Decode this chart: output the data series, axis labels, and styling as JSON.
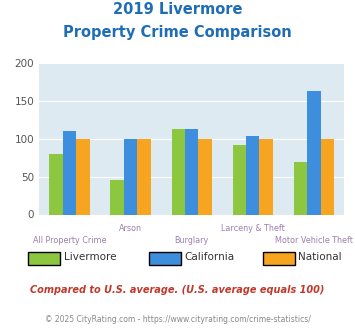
{
  "title_line1": "2019 Livermore",
  "title_line2": "Property Crime Comparison",
  "categories": [
    "All Property Crime",
    "Arson",
    "Burglary",
    "Larceny & Theft",
    "Motor Vehicle Theft"
  ],
  "livermore": [
    80,
    46,
    113,
    91,
    69
  ],
  "california": [
    110,
    100,
    113,
    103,
    163
  ],
  "national": [
    100,
    100,
    100,
    100,
    100
  ],
  "colors": {
    "livermore": "#8dc63f",
    "california": "#3d8fdd",
    "national": "#f7a520"
  },
  "ylim": [
    0,
    200
  ],
  "yticks": [
    0,
    50,
    100,
    150,
    200
  ],
  "bg_color": "#deeaf1",
  "title_color": "#1f6db5",
  "xlabel_color": "#9e7eb0",
  "note": "Compared to U.S. average. (U.S. average equals 100)",
  "note_color": "#c0392b",
  "footer": "© 2025 CityRating.com - https://www.cityrating.com/crime-statistics/",
  "footer_color": "#888888",
  "legend_label_color": "#333333"
}
